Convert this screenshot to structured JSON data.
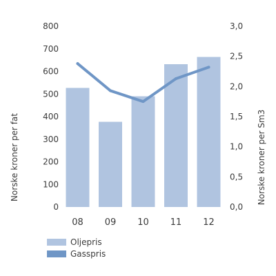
{
  "chart_data": {
    "type": "bar",
    "categories": [
      "08",
      "09",
      "10",
      "11",
      "12"
    ],
    "series": [
      {
        "name": "Oljepris",
        "type": "bar",
        "axis": "left",
        "values": [
          527,
          377,
          490,
          632,
          664
        ],
        "color": "#b0c4e0"
      },
      {
        "name": "Gasspris",
        "type": "line",
        "axis": "right",
        "values": [
          2.38,
          1.93,
          1.75,
          2.13,
          2.32
        ],
        "color": "#6f96c6"
      }
    ],
    "ylabel": "Norske kroner per fat",
    "y2label": "Norske kroner per Sm3",
    "ylim": [
      0,
      800
    ],
    "y2lim": [
      0,
      3
    ],
    "yticks": [
      "0",
      "100",
      "200",
      "300",
      "400",
      "500",
      "600",
      "700",
      "800"
    ],
    "y2ticks": [
      "0,0",
      "0,5",
      "1,0",
      "1,5",
      "2,0",
      "2,5",
      "3,0"
    ],
    "grid": false,
    "legend_position": "bottom-left"
  }
}
